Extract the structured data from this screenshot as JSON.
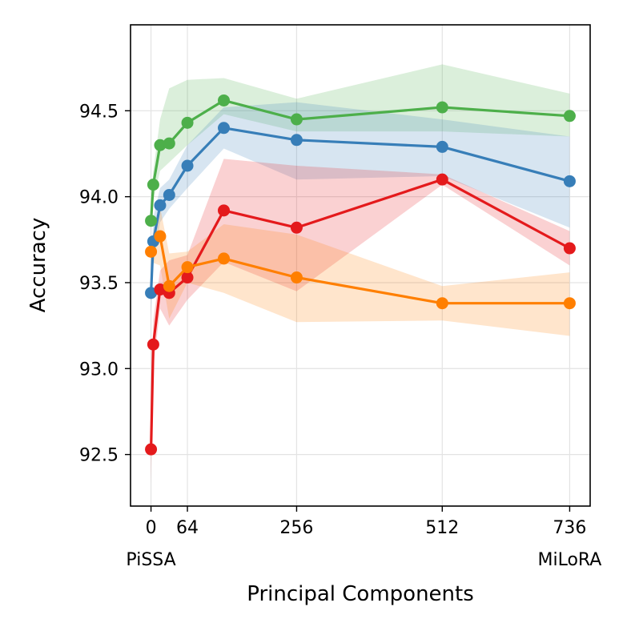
{
  "chart_data": {
    "type": "line",
    "title": "",
    "xlabel": "Principal Components",
    "ylabel": "Accuracy",
    "xlim": [
      -36,
      772
    ],
    "ylim": [
      92.2,
      95.0
    ],
    "grid": true,
    "x_ticks": [
      0,
      64,
      256,
      512,
      736
    ],
    "x_tick_labels": [
      "0",
      "64",
      "256",
      "512",
      "736"
    ],
    "x_sub_labels": [
      {
        "x": 0,
        "label": "PiSSA"
      },
      {
        "x": 736,
        "label": "MiLoRA"
      }
    ],
    "y_ticks": [
      92.5,
      93.0,
      93.5,
      94.0,
      94.5
    ],
    "y_tick_labels": [
      "92.5",
      "93.0",
      "93.5",
      "94.0",
      "94.5"
    ],
    "series": [
      {
        "name": "green",
        "color": "#4daf4a",
        "x": [
          0,
          4,
          16,
          32,
          64,
          128,
          256,
          512,
          736
        ],
        "values": [
          93.86,
          94.07,
          94.3,
          94.31,
          94.43,
          94.56,
          94.45,
          94.52,
          94.47
        ],
        "lower": [
          93.8,
          93.98,
          94.15,
          94.2,
          94.3,
          94.48,
          94.38,
          94.38,
          94.35
        ],
        "upper": [
          93.93,
          94.15,
          94.45,
          94.63,
          94.68,
          94.69,
          94.57,
          94.77,
          94.6
        ]
      },
      {
        "name": "blue",
        "color": "#377eb8",
        "x": [
          0,
          4,
          16,
          32,
          64,
          128,
          256,
          512,
          736
        ],
        "values": [
          93.44,
          93.74,
          93.95,
          94.01,
          94.18,
          94.4,
          94.33,
          94.29,
          94.09
        ],
        "lower": [
          93.3,
          93.6,
          93.85,
          93.93,
          94.05,
          94.28,
          94.1,
          94.12,
          93.82
        ],
        "upper": [
          93.58,
          93.88,
          94.05,
          94.1,
          94.3,
          94.52,
          94.55,
          94.45,
          94.35
        ]
      },
      {
        "name": "red",
        "color": "#e41a1c",
        "x": [
          0,
          4,
          16,
          32,
          64,
          128,
          256,
          512,
          736
        ],
        "values": [
          92.53,
          93.14,
          93.46,
          93.44,
          93.53,
          93.92,
          93.82,
          94.1,
          93.7
        ],
        "lower": [
          92.33,
          93.0,
          93.35,
          93.25,
          93.4,
          93.62,
          93.45,
          94.07,
          93.6
        ],
        "upper": [
          92.73,
          93.28,
          93.57,
          93.63,
          93.66,
          94.22,
          94.18,
          94.13,
          93.8
        ]
      },
      {
        "name": "orange",
        "color": "#ff7f00",
        "x": [
          0,
          16,
          32,
          64,
          128,
          256,
          512,
          736
        ],
        "values": [
          93.68,
          93.77,
          93.48,
          93.59,
          93.64,
          93.53,
          93.38,
          93.38
        ],
        "lower": [
          93.62,
          93.6,
          93.29,
          93.5,
          93.44,
          93.27,
          93.28,
          93.19
        ],
        "upper": [
          93.74,
          93.94,
          93.67,
          93.68,
          93.84,
          93.78,
          93.48,
          93.56
        ]
      }
    ]
  }
}
